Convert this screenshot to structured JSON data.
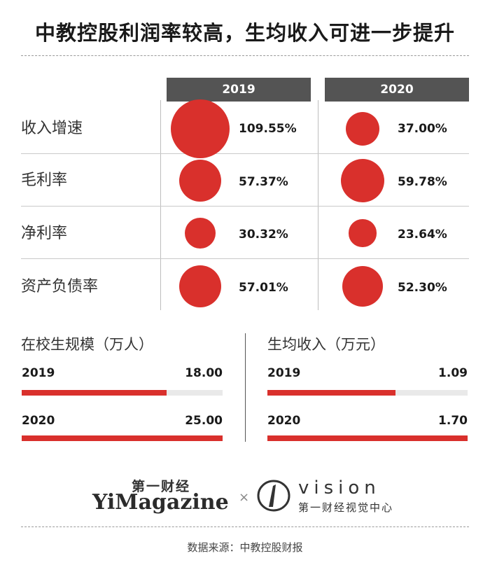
{
  "title": "中教控股利润率较高，生均收入可进一步提升",
  "chart_data": [
    {
      "type": "bubble-table",
      "categories": [
        "收入增速",
        "毛利率",
        "净利率",
        "资产负债率"
      ],
      "series": [
        {
          "name": "2019",
          "values": [
            109.55,
            57.37,
            30.32,
            57.01
          ],
          "labels": [
            "109.55%",
            "57.37%",
            "30.32%",
            "57.01%"
          ]
        },
        {
          "name": "2020",
          "values": [
            37.0,
            59.78,
            23.64,
            52.3
          ],
          "labels": [
            "37.00%",
            "59.78%",
            "23.64%",
            "52.30%"
          ]
        }
      ],
      "color": "#d9302c",
      "header_color": "#545454"
    },
    {
      "type": "bar",
      "title": "在校生规模（万人）",
      "categories": [
        "2019",
        "2020"
      ],
      "values": [
        18.0,
        25.0
      ],
      "labels": [
        "18.00",
        "25.00"
      ],
      "xlim": [
        0,
        25
      ],
      "color": "#d9302c"
    },
    {
      "type": "bar",
      "title": "生均收入（万元）",
      "categories": [
        "2019",
        "2020"
      ],
      "values": [
        1.09,
        1.7
      ],
      "labels": [
        "1.09",
        "1.70"
      ],
      "xlim": [
        0,
        1.7
      ],
      "color": "#d9302c"
    }
  ],
  "logo_left": {
    "cn": "第一财经",
    "en": "YiMagazine"
  },
  "logo_sep": "×",
  "logo_right": {
    "en": "vision",
    "cn": "第一财经视觉中心"
  },
  "source": "数据来源：中教控股财报"
}
